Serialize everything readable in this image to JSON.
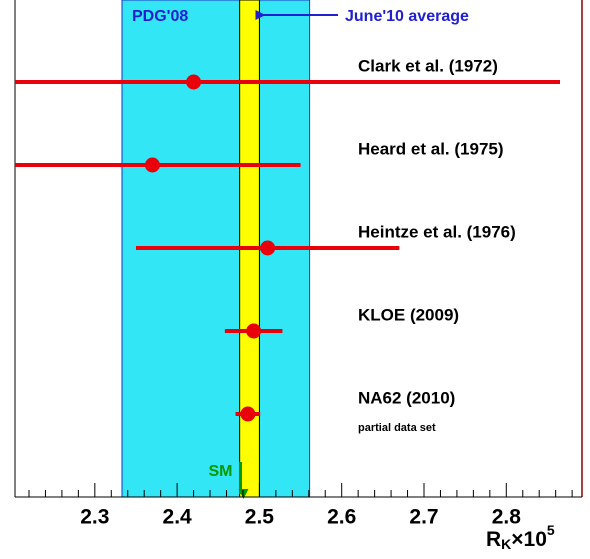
{
  "chart_data": {
    "type": "errorbar",
    "categories": [
      "Clark et al. (1972)",
      "Heard et al. (1975)",
      "Heintze et al. (1976)",
      "KLOE (2009)",
      "NA62 (2010)"
    ],
    "sublabels": [
      null,
      null,
      null,
      null,
      "partial data set"
    ],
    "values": [
      2.42,
      2.37,
      2.51,
      2.493,
      2.486
    ],
    "errors": [
      0.45,
      0.18,
      0.16,
      0.035,
      0.015
    ],
    "color": "#e8000b",
    "bands": [
      {
        "label": "PDG'08",
        "center": 2.447,
        "halfwidth": 0.114,
        "color": "#33e6f5",
        "edge": "#2030d0"
      },
      {
        "label": "June'10 average",
        "center": 2.488,
        "halfwidth": 0.012,
        "color": "#ffff00",
        "edge": "#000000"
      }
    ],
    "reference": {
      "label": "SM",
      "value": 2.477,
      "color": "#009900"
    },
    "xlabel": {
      "main": "R",
      "sub": "K",
      "rest": "×10",
      "sup": "5"
    },
    "xlim": [
      2.203,
      2.892
    ],
    "xticks": [
      2.3,
      2.4,
      2.5,
      2.6,
      2.7,
      2.8
    ],
    "xminorticks": [
      2.22,
      2.24,
      2.26,
      2.28,
      2.32,
      2.34,
      2.36,
      2.38,
      2.42,
      2.44,
      2.46,
      2.48,
      2.52,
      2.54,
      2.56,
      2.58,
      2.62,
      2.64,
      2.66,
      2.68,
      2.72,
      2.74,
      2.76,
      2.78,
      2.82,
      2.84,
      2.86,
      2.88
    ]
  }
}
